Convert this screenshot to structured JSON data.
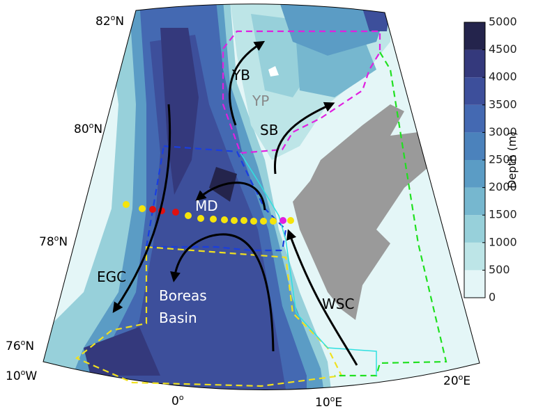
{
  "map": {
    "latitude_labels": [
      {
        "value": "82",
        "degree": "o",
        "hemisphere": "N"
      },
      {
        "value": "80",
        "degree": "o",
        "hemisphere": "N"
      },
      {
        "value": "78",
        "degree": "o",
        "hemisphere": "N"
      },
      {
        "value": "76",
        "degree": "o",
        "hemisphere": "N"
      }
    ],
    "longitude_labels": [
      {
        "value": "10",
        "degree": "o",
        "hemisphere": "W"
      },
      {
        "value": "0",
        "degree": "o"
      },
      {
        "value": "10",
        "degree": "o",
        "hemisphere": "E"
      },
      {
        "value": "20",
        "degree": "o",
        "hemisphere": "E"
      }
    ],
    "region_labels": [
      "YB",
      "YP",
      "SB",
      "MD",
      "EGC",
      "WSC"
    ],
    "basin_label": [
      "Boreas",
      "Basin"
    ]
  },
  "colorbar": {
    "title": "Depth (m)",
    "lim": [
      0,
      5000
    ],
    "ticks": [
      0,
      500,
      1000,
      1500,
      2000,
      2500,
      3000,
      3500,
      4000,
      4500,
      5000
    ],
    "colors": [
      "#e4f6f7",
      "#bde5e7",
      "#97d0da",
      "#76b7cf",
      "#5b9cc5",
      "#4b82bc",
      "#4469b2",
      "#3d4f9b",
      "#34397c",
      "#24244c"
    ]
  }
}
